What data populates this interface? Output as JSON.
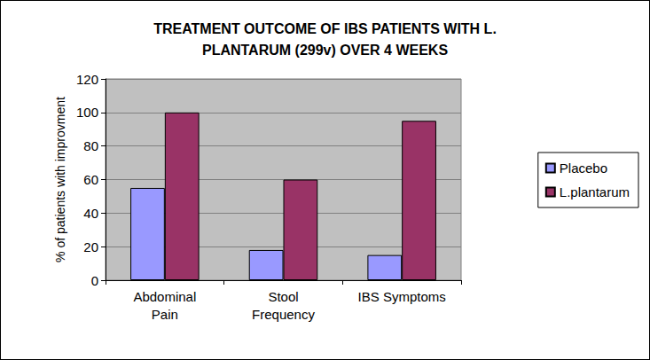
{
  "chart_data": {
    "type": "bar",
    "title": "TREATMENT OUTCOME OF IBS PATIENTS WITH L.\nPLANTARUM (299v) OVER 4 WEEKS",
    "y_label": "% of patients with improvment",
    "categories": [
      "Abdominal\nPain",
      "Stool\nFrequency",
      "IBS Symptoms"
    ],
    "series": [
      {
        "name": "Placebo",
        "color": "#9999ff",
        "values": [
          55,
          18,
          15
        ]
      },
      {
        "name": "L.plantarum",
        "color": "#993366",
        "values": [
          100,
          60,
          95
        ]
      }
    ],
    "ylim": [
      0,
      120
    ],
    "yticks": [
      0,
      20,
      40,
      60,
      80,
      100,
      120
    ],
    "grid": true,
    "legend": "right"
  }
}
